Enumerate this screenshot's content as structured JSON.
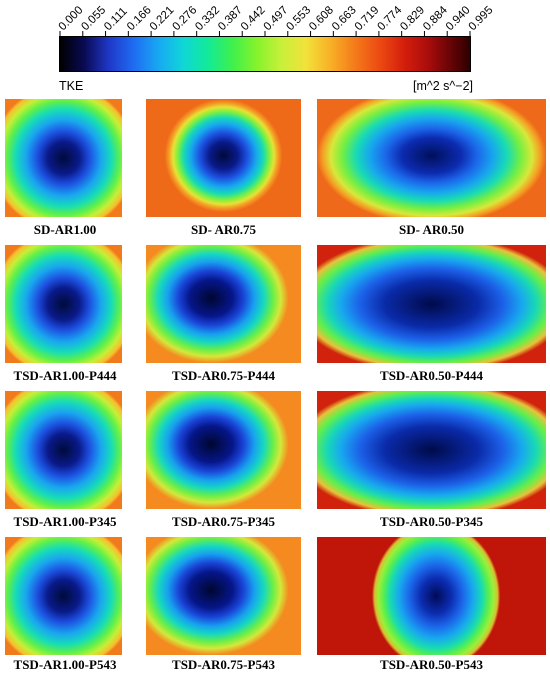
{
  "colorbar": {
    "ticks": [
      "0.000",
      "0.055",
      "0.111",
      "0.166",
      "0.221",
      "0.276",
      "0.332",
      "0.387",
      "0.442",
      "0.497",
      "0.553",
      "0.608",
      "0.663",
      "0.719",
      "0.774",
      "0.829",
      "0.884",
      "0.940",
      "0.995"
    ],
    "variable": "TKE",
    "unit": "[m^2 s^−2]",
    "colors": [
      "#000000",
      "#1f38c8",
      "#18a8f2",
      "#12ea9a",
      "#86f22c",
      "#f2e23a",
      "#f47a1a",
      "#d41e0c",
      "#2e0000"
    ]
  },
  "panels": [
    {
      "label": "SD-AR1.00"
    },
    {
      "label": "SD- AR0.75"
    },
    {
      "label": "SD- AR0.50"
    },
    {
      "label": "TSD-AR1.00-P444"
    },
    {
      "label": "TSD-AR0.75-P444"
    },
    {
      "label": "TSD-AR0.50-P444"
    },
    {
      "label": "TSD-AR1.00-P345"
    },
    {
      "label": "TSD-AR0.75-P345"
    },
    {
      "label": "TSD-AR0.50-P345"
    },
    {
      "label": "TSD-AR1.00-P543"
    },
    {
      "label": "TSD-AR0.75-P543"
    },
    {
      "label": "TSD-AR0.50-P543"
    }
  ]
}
